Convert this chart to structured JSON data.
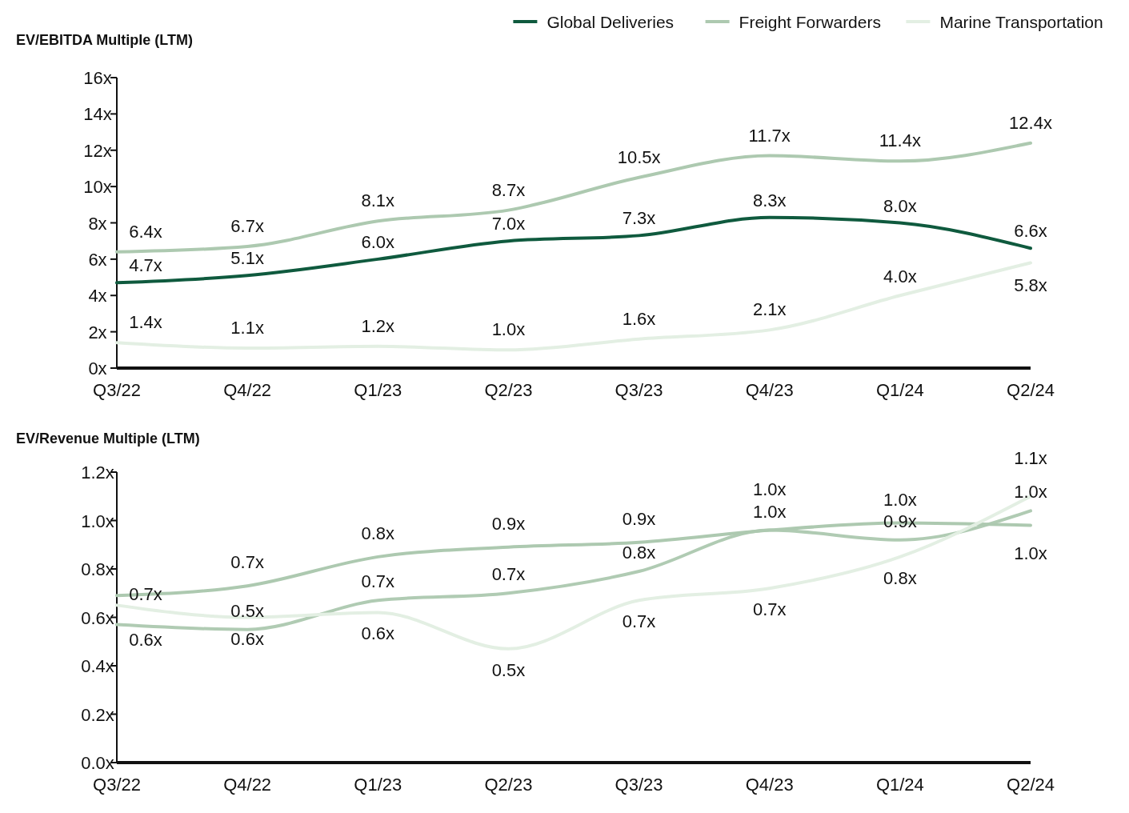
{
  "chart_data": [
    {
      "type": "line",
      "title": "EV/EBITDA Multiple (LTM)",
      "categories": [
        "Q3/22",
        "Q4/22",
        "Q1/23",
        "Q2/23",
        "Q3/23",
        "Q4/23",
        "Q1/24",
        "Q2/24"
      ],
      "ylim": [
        0,
        16
      ],
      "yticks": [
        {
          "value": 0,
          "label": "0x"
        },
        {
          "value": 2,
          "label": "2x"
        },
        {
          "value": 4,
          "label": "4x"
        },
        {
          "value": 6,
          "label": "6x"
        },
        {
          "value": 8,
          "label": "8x"
        },
        {
          "value": 10,
          "label": "10x"
        },
        {
          "value": 12,
          "label": "12x"
        },
        {
          "value": 14,
          "label": "14x"
        },
        {
          "value": 16,
          "label": "16x"
        }
      ],
      "legend": "top right",
      "series": [
        {
          "name": "Global Deliveries",
          "color": "#0f5a3e",
          "values": [
            4.7,
            5.1,
            6.0,
            7.0,
            7.3,
            8.3,
            8.0,
            6.6
          ],
          "value_labels": [
            "4.7x",
            "5.1x",
            "6.0x",
            "7.0x",
            "7.3x",
            "8.3x",
            "8.0x",
            "6.6x"
          ]
        },
        {
          "name": "Freight Forwarders",
          "color": "#adc9b0",
          "values": [
            6.4,
            6.7,
            8.1,
            8.7,
            10.5,
            11.7,
            11.4,
            12.4
          ],
          "value_labels": [
            "6.4x",
            "6.7x",
            "8.1x",
            "8.7x",
            "10.5x",
            "11.7x",
            "11.4x",
            "12.4x"
          ]
        },
        {
          "name": "Marine Transportation",
          "color": "#e3efe3",
          "values": [
            1.4,
            1.1,
            1.2,
            1.0,
            1.6,
            2.1,
            4.0,
            5.8
          ],
          "value_labels": [
            "1.4x",
            "1.1x",
            "1.2x",
            "1.0x",
            "1.6x",
            "2.1x",
            "4.0x",
            "5.8x"
          ]
        }
      ]
    },
    {
      "type": "line",
      "title": "EV/Revenue Multiple (LTM)",
      "categories": [
        "Q3/22",
        "Q4/22",
        "Q1/23",
        "Q2/23",
        "Q3/23",
        "Q4/23",
        "Q1/24",
        "Q2/24"
      ],
      "ylim": [
        0,
        1.2
      ],
      "yticks": [
        {
          "value": 0,
          "label": "0.0x"
        },
        {
          "value": 0.2,
          "label": "0.2x"
        },
        {
          "value": 0.4,
          "label": "0.4x"
        },
        {
          "value": 0.6,
          "label": "0.6x"
        },
        {
          "value": 0.8,
          "label": "0.8x"
        },
        {
          "value": 1.0,
          "label": "1.0x"
        },
        {
          "value": 1.2,
          "label": "1.2x"
        }
      ],
      "series": [
        {
          "color": "#b0cbb3",
          "values": [
            0.57,
            0.55,
            0.67,
            0.7,
            0.79,
            0.96,
            0.92,
            1.04
          ],
          "value_labels": [
            "0.6x",
            "0.5x",
            "0.7x",
            "0.7x",
            "0.8x",
            "1.0x",
            "0.9x",
            "1.0x"
          ]
        },
        {
          "color": "#adc9b0",
          "values": [
            0.69,
            0.73,
            0.85,
            0.89,
            0.91,
            0.96,
            0.99,
            0.98
          ],
          "value_labels": [
            null,
            "0.7x",
            "0.8x",
            "0.9x",
            "0.9x",
            "1.0x",
            "1.0x",
            "1.0x"
          ]
        },
        {
          "color": "#e3efe3",
          "values": [
            0.65,
            0.6,
            0.62,
            0.47,
            0.67,
            0.72,
            0.85,
            1.1
          ],
          "value_labels": [
            "0.7x",
            "0.6x",
            "0.6x",
            "0.5x",
            "0.7x",
            "0.7x",
            "0.8x",
            "1.1x"
          ]
        }
      ]
    }
  ]
}
